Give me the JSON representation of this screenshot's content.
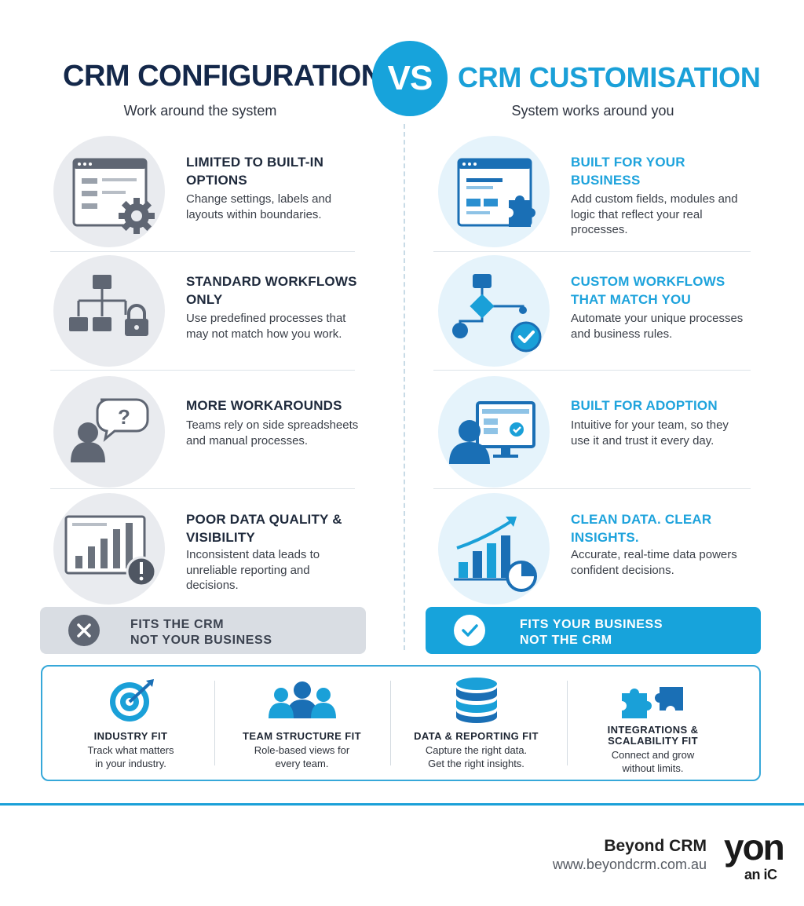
{
  "header": {
    "left_title": "CRM CONFIGURATION",
    "vs": "VS",
    "right_title": "CRM CUSTOMISATION",
    "left_subtitle": "Work around the system",
    "right_subtitle": "System works around you"
  },
  "configuration": [
    {
      "heading": "LIMITED TO BUILT-IN OPTIONS",
      "description": "Change settings, labels and layouts within boundaries.",
      "icon": "window-gear-icon"
    },
    {
      "heading": "STANDARD WORKFLOWS ONLY",
      "description": "Use predefined processes that may not match how you work.",
      "icon": "workflow-lock-icon"
    },
    {
      "heading": "MORE WORKAROUNDS",
      "description": "Teams rely on side spreadsheets and manual processes.",
      "icon": "user-question-icon"
    },
    {
      "heading": "POOR DATA QUALITY & VISIBILITY",
      "description": "Inconsistent data leads to unreliable reporting and decisions.",
      "icon": "chart-warning-icon"
    }
  ],
  "customisation": [
    {
      "heading": "BUILT FOR YOUR BUSINESS",
      "description": "Add custom fields, modules and logic that reflect your real processes.",
      "icon": "window-puzzle-icon"
    },
    {
      "heading": "CUSTOM WORKFLOWS THAT MATCH YOU",
      "description": "Automate your unique processes and business rules.",
      "icon": "workflow-check-icon"
    },
    {
      "heading": "BUILT FOR ADOPTION",
      "description": "Intuitive for your team, so they use it and trust it every day.",
      "icon": "user-monitor-icon"
    },
    {
      "heading": "CLEAN DATA. CLEAR INSIGHTS.",
      "description": "Accurate, real-time data powers confident decisions.",
      "icon": "chart-growth-icon"
    }
  ],
  "banners": {
    "left_line1": "FITS THE CRM",
    "left_line2": "NOT YOUR BUSINESS",
    "right_line1": "FITS YOUR BUSINESS",
    "right_line2": "NOT THE CRM"
  },
  "fits": [
    {
      "title": "INDUSTRY FIT",
      "desc_line1": "Track what matters",
      "desc_line2": "in your industry.",
      "icon": "target-icon"
    },
    {
      "title": "TEAM STRUCTURE FIT",
      "desc_line1": "Role-based views for",
      "desc_line2": "every team.",
      "icon": "team-icon"
    },
    {
      "title": "DATA & REPORTING FIT",
      "desc_line1": "Capture the right data.",
      "desc_line2": "Get the right insights.",
      "icon": "database-icon"
    },
    {
      "title_line1": "INTEGRATIONS &",
      "title_line2": "SCALABILITY FIT",
      "desc_line1": "Connect and grow",
      "desc_line2": "without limits.",
      "icon": "puzzle-pieces-icon"
    }
  ],
  "footer": {
    "brand": "Beyond CRM",
    "url": "www.beyondcrm.com.au",
    "logo_text_1": "yon",
    "logo_text_2": "an iC"
  },
  "colors": {
    "navy": "#14284a",
    "accent_blue": "#17a3db",
    "grey_icon": "#5f6673",
    "banner_grey": "#d9dde3"
  }
}
